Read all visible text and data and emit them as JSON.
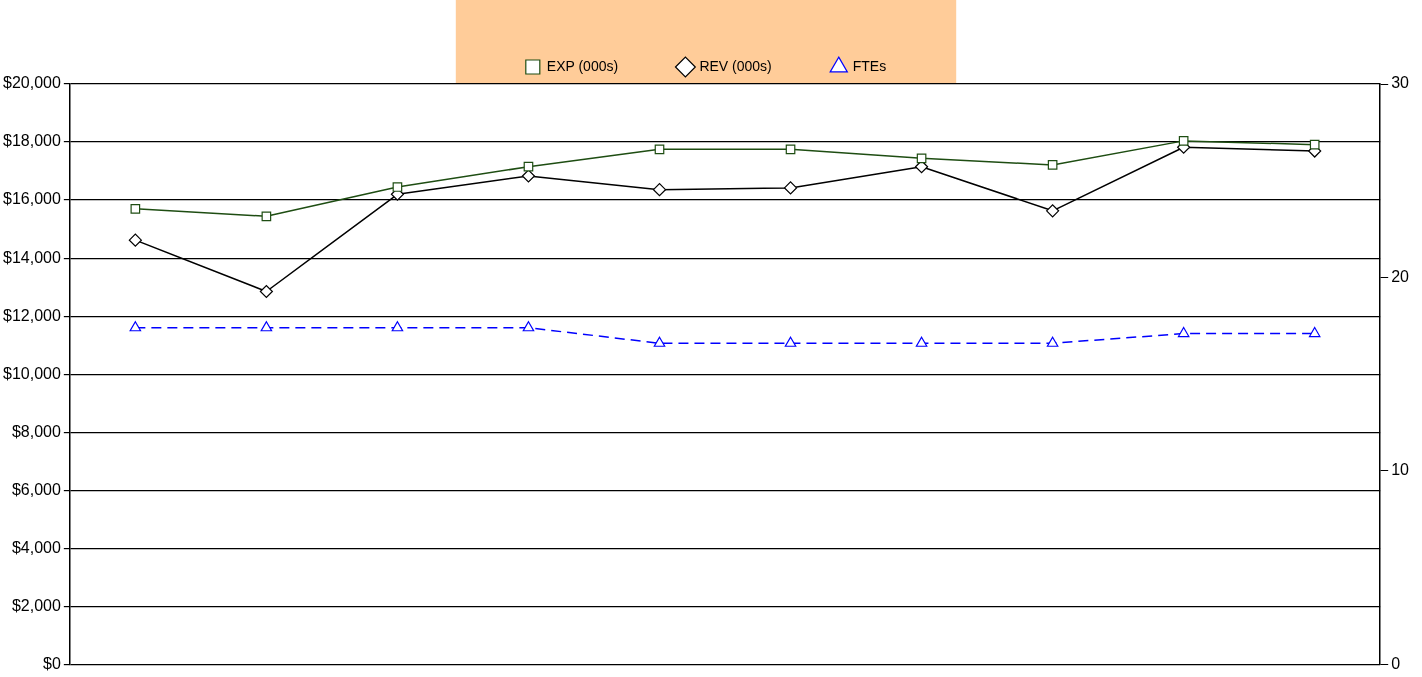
{
  "chart_data": {
    "type": "line",
    "categories": [
      null,
      null,
      null,
      null,
      null,
      null,
      null,
      null,
      null,
      null
    ],
    "series": [
      {
        "name": "EXP (000s)",
        "color": "#1e4d12",
        "marker": "square",
        "values": [
          15700,
          15440,
          16450,
          17150,
          17750,
          17750,
          17440,
          17210,
          18040,
          17910
        ]
      },
      {
        "name": "REV (000s)",
        "color": "#000000",
        "marker": "diamond",
        "values": [
          14620,
          12850,
          16200,
          16830,
          16360,
          16420,
          17150,
          15630,
          17820,
          17690
        ]
      },
      {
        "name": "FTEs",
        "color": "#0000ff",
        "marker": "triangle",
        "line_style": "dashed",
        "axis": "y2",
        "values": [
          17.4,
          17.4,
          17.4,
          17.4,
          16.6,
          16.6,
          16.6,
          16.6,
          17.1,
          17.1
        ]
      }
    ],
    "ylim": [
      0,
      20000
    ],
    "yticks": [
      {
        "value": 0,
        "label": "$0"
      },
      {
        "value": 2000,
        "label": "$2,000"
      },
      {
        "value": 4000,
        "label": "$4,000"
      },
      {
        "value": 6000,
        "label": "$6,000"
      },
      {
        "value": 8000,
        "label": "$8,000"
      },
      {
        "value": 10000,
        "label": "$10,000"
      },
      {
        "value": 12000,
        "label": "$12,000"
      },
      {
        "value": 14000,
        "label": "$14,000"
      },
      {
        "value": 16000,
        "label": "$16,000"
      },
      {
        "value": 18000,
        "label": "$18,000"
      },
      {
        "value": 20000,
        "label": "$20,000"
      }
    ],
    "y2lim": [
      0,
      30
    ],
    "y2ticks": [
      0,
      10,
      20,
      30
    ],
    "grid": "y",
    "legend": "top"
  }
}
